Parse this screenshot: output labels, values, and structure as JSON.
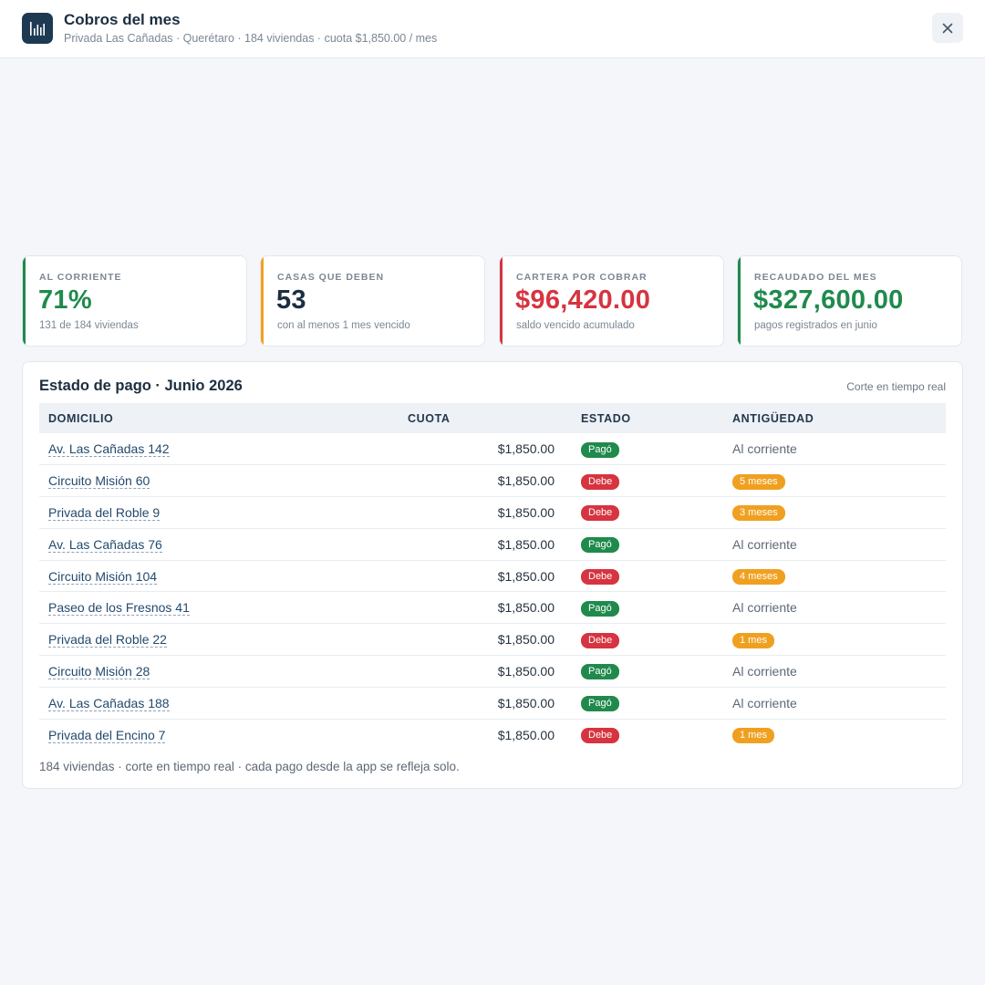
{
  "header": {
    "title": "Cobros del mes",
    "subtitle": "Privada Las Cañadas · Querétaro · 184 viviendas · cuota $1,850.00 / mes",
    "icon": "bar-chart-icon",
    "close_icon": "close-icon"
  },
  "colors": {
    "green": "#1f8a4c",
    "amber": "#f0a020",
    "red": "#d63440",
    "navy": "#1d3a52"
  },
  "kpis": [
    {
      "label": "AL CORRIENTE",
      "value": "71%",
      "note": "131 de 184 viviendas",
      "color": "#1f8a4c",
      "bar_color": "#1f8a4c"
    },
    {
      "label": "CASAS QUE DEBEN",
      "value": "53",
      "note": "con al menos 1 mes vencido",
      "color": "#1c2e40",
      "bar_color": "#f0a020"
    },
    {
      "label": "CARTERA POR COBRAR",
      "value": "$96,420.00",
      "note": "saldo vencido acumulado",
      "color": "#d63440",
      "bar_color": "#d63440"
    },
    {
      "label": "RECAUDADO DEL MES",
      "value": "$327,600.00",
      "note": "pagos registrados en junio",
      "color": "#1f8a4c",
      "bar_color": "#1f8a4c"
    }
  ],
  "panel": {
    "title": "Estado de pago · Junio 2026",
    "note": "Corte en tiempo real",
    "columns": [
      "DOMICILIO",
      "CUOTA",
      "ESTADO",
      "ANTIGÜEDAD"
    ],
    "rows": [
      {
        "address": "Av. Las Cañadas 142",
        "fee": "$1,850.00",
        "status": "Pagó",
        "age": "Al corriente"
      },
      {
        "address": "Circuito Misión 60",
        "fee": "$1,850.00",
        "status": "Debe",
        "age": "5 meses"
      },
      {
        "address": "Privada del Roble 9",
        "fee": "$1,850.00",
        "status": "Debe",
        "age": "3 meses"
      },
      {
        "address": "Av. Las Cañadas 76",
        "fee": "$1,850.00",
        "status": "Pagó",
        "age": "Al corriente"
      },
      {
        "address": "Circuito Misión 104",
        "fee": "$1,850.00",
        "status": "Debe",
        "age": "4 meses"
      },
      {
        "address": "Paseo de los Fresnos 41",
        "fee": "$1,850.00",
        "status": "Pagó",
        "age": "Al corriente"
      },
      {
        "address": "Privada del Roble 22",
        "fee": "$1,850.00",
        "status": "Debe",
        "age": "1 mes"
      },
      {
        "address": "Circuito Misión 28",
        "fee": "$1,850.00",
        "status": "Pagó",
        "age": "Al corriente"
      },
      {
        "address": "Av. Las Cañadas 188",
        "fee": "$1,850.00",
        "status": "Pagó",
        "age": "Al corriente"
      },
      {
        "address": "Privada del Encino 7",
        "fee": "$1,850.00",
        "status": "Debe",
        "age": "1 mes"
      }
    ],
    "footnote": "184 viviendas · corte en tiempo real · cada pago desde la app se refleja solo."
  }
}
